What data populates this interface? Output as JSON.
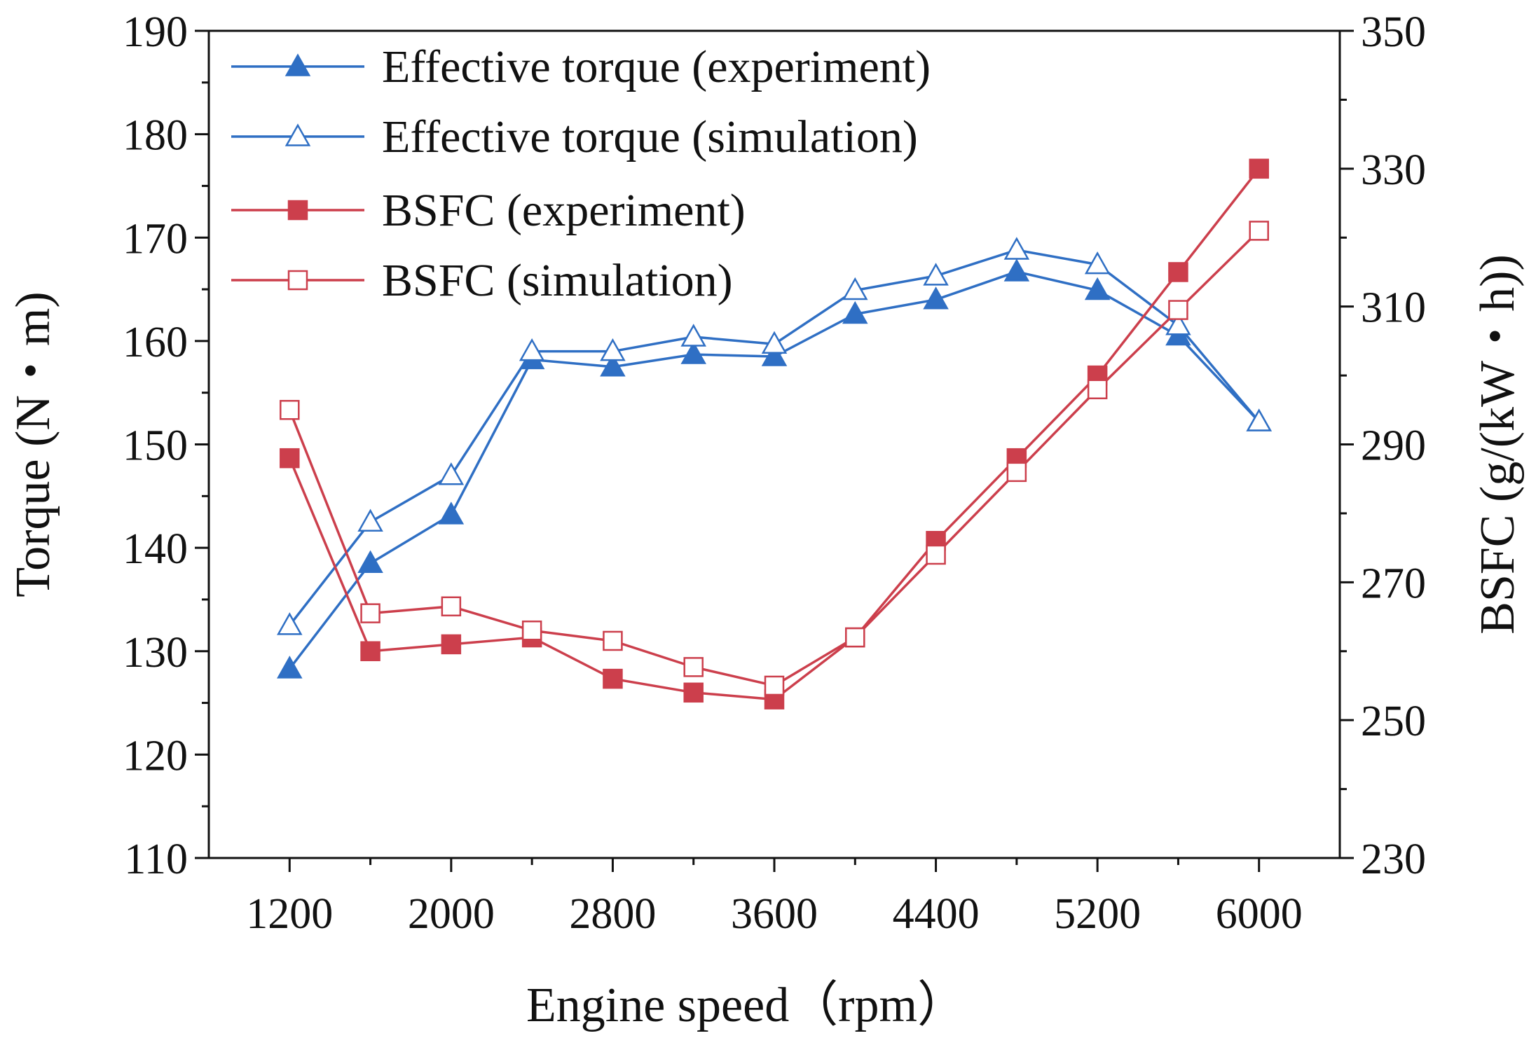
{
  "chart_data": {
    "type": "line",
    "title": "",
    "xlabel": "Engine speed（rpm）",
    "ylabel": "Torque (N・m)",
    "y2label": "BSFC (g/(kW・h))",
    "xlim": [
      800,
      6400
    ],
    "ylim": [
      110,
      190
    ],
    "y2lim": [
      230,
      350
    ],
    "xticks": [
      1200,
      2000,
      2800,
      3600,
      4400,
      5200,
      6000
    ],
    "yticks": [
      110,
      120,
      130,
      140,
      150,
      160,
      170,
      180,
      190
    ],
    "y2ticks": [
      230,
      250,
      270,
      290,
      310,
      330,
      350
    ],
    "x": [
      1200,
      1600,
      2000,
      2400,
      2800,
      3200,
      3600,
      4000,
      4400,
      4800,
      5200,
      5600,
      6000
    ],
    "legend_position": "top-left",
    "colors": {
      "torque": "#2f6fc4",
      "bsfc": "#cc3f4c",
      "axis": "#111111"
    },
    "series": [
      {
        "name": "Effective torque (experiment)",
        "axis": "left",
        "color_key": "torque",
        "marker": "triangle-filled",
        "values": [
          128.3,
          138.5,
          143.2,
          158.2,
          157.5,
          158.7,
          158.5,
          162.6,
          164.0,
          166.7,
          164.9,
          160.5,
          152.2
        ]
      },
      {
        "name": "Effective torque (simulation)",
        "axis": "left",
        "color_key": "torque",
        "marker": "triangle-open",
        "values": [
          132.5,
          142.5,
          147.0,
          159.0,
          159.0,
          160.4,
          159.7,
          164.9,
          166.3,
          168.8,
          167.4,
          161.5,
          152.2
        ]
      },
      {
        "name": "BSFC (experiment)",
        "axis": "right",
        "color_key": "bsfc",
        "marker": "square-filled",
        "values": [
          288,
          260,
          261,
          262,
          256,
          254,
          253,
          262,
          276,
          288,
          300,
          315,
          330
        ]
      },
      {
        "name": "BSFC (simulation)",
        "axis": "right",
        "color_key": "bsfc",
        "marker": "square-open",
        "values": [
          295,
          265.5,
          266.5,
          263,
          261.5,
          257.7,
          255,
          262,
          274,
          286,
          298,
          309.5,
          321
        ]
      }
    ]
  }
}
